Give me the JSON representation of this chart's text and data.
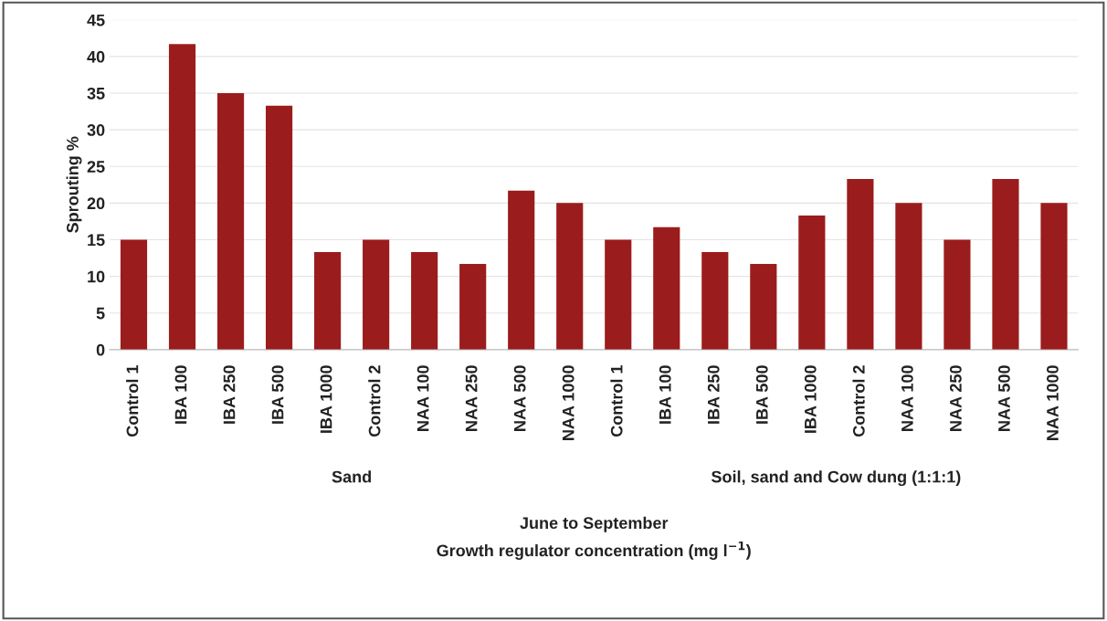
{
  "chart_data": {
    "type": "bar",
    "ylabel": "Sprouting %",
    "categories": [
      "Control 1",
      "IBA 100",
      "IBA 250",
      "IBA 500",
      "IBA 1000",
      "Control 2",
      "NAA 100",
      "NAA 250",
      "NAA 500",
      "NAA 1000",
      "Control 1",
      "IBA 100",
      "IBA 250",
      "IBA 500",
      "IBA 1000",
      "Control 2",
      "NAA 100",
      "NAA 250",
      "NAA 500",
      "NAA 1000"
    ],
    "values": [
      15,
      41.7,
      35,
      33.3,
      13.3,
      15,
      13.3,
      11.7,
      21.7,
      20,
      15,
      16.7,
      13.3,
      11.7,
      18.3,
      23.3,
      20,
      15,
      23.3,
      20
    ],
    "color": "#9b1c1c",
    "ylim": [
      0,
      45
    ],
    "yticks": [
      0,
      5,
      10,
      15,
      20,
      25,
      30,
      35,
      40,
      45
    ],
    "grid": "y",
    "annotations": [
      "Sand",
      "Soil, sand and Cow dung (1:1:1)",
      "June to September",
      "Growth regulator concentration (mg l$^{−1}$)"
    ]
  }
}
